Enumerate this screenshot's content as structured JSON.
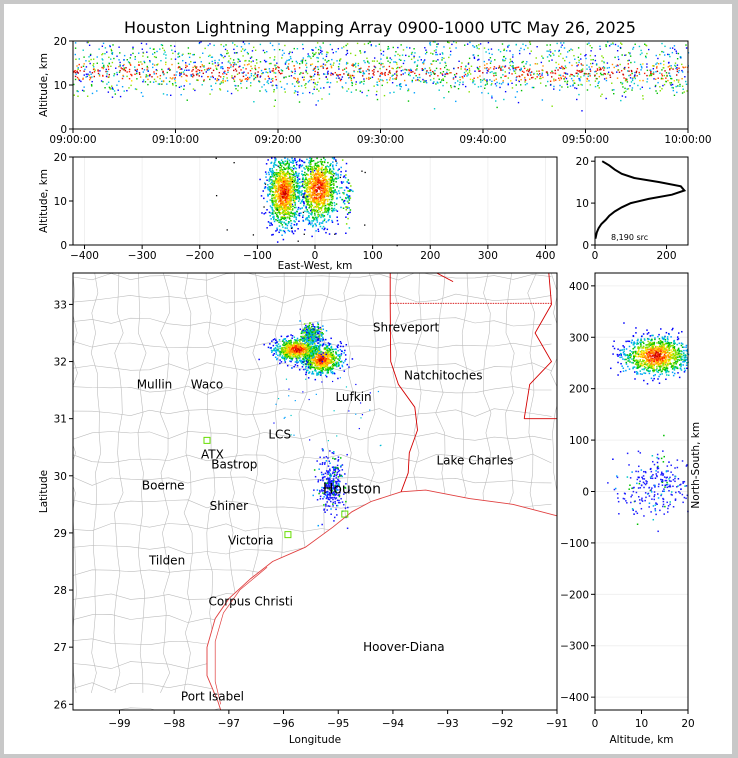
{
  "title": "Houston Lightning Mapping Array 0900-1000 UTC May 26, 2025",
  "colors": {
    "county": "#bdbdbd",
    "state": "#d40000",
    "coast": "#e04040",
    "city": "#000000",
    "network_station": "#ff8c2a",
    "houston": "#e8a000",
    "storm": "#1a1aff",
    "sensor": "#66dd00"
  },
  "chart_data": [
    {
      "id": "time_altitude",
      "type": "scatter",
      "xlabel": "",
      "ylabel": "Altitude, km",
      "x_ticks": [
        "09:00:00",
        "09:10:00",
        "09:20:00",
        "09:30:00",
        "09:40:00",
        "09:50:00",
        "10:00:00"
      ],
      "xlim": [
        "09:00:00",
        "10:00:00"
      ],
      "ylim": [
        0,
        20
      ],
      "y_ticks": [
        0,
        10,
        20
      ],
      "density_bands": [
        {
          "t_start": "09:00:00",
          "t_end": "10:00:00",
          "alt_center": 13,
          "alt_spread": 3
        }
      ]
    },
    {
      "id": "eastwest_altitude",
      "type": "scatter",
      "xlabel": "East-West, km",
      "ylabel": "Altitude, km",
      "xlim": [
        -420,
        420
      ],
      "x_ticks": [
        -400,
        -300,
        -200,
        -100,
        0,
        100,
        200,
        300,
        400
      ],
      "ylim": [
        0,
        20
      ],
      "y_ticks": [
        0,
        10,
        20
      ],
      "clusters": [
        {
          "x": 5,
          "y": 13,
          "sx": 18,
          "sy": 4,
          "core": true
        },
        {
          "x": -55,
          "y": 12,
          "sx": 14,
          "sy": 4,
          "core": true
        },
        {
          "x": 55,
          "y": 11,
          "sx": 4,
          "sy": 3,
          "core": false
        }
      ]
    },
    {
      "id": "altitude_histogram",
      "type": "line",
      "xlabel": "",
      "ylabel": "",
      "xlim": [
        0,
        260
      ],
      "x_ticks": [
        0,
        200
      ],
      "ylim": [
        0,
        21
      ],
      "y_ticks": [
        0,
        10,
        20
      ],
      "annotation": "8,190 src",
      "profile": [
        [
          1.5,
          1
        ],
        [
          3,
          5
        ],
        [
          4,
          10
        ],
        [
          5,
          18
        ],
        [
          6,
          30
        ],
        [
          7,
          40
        ],
        [
          8,
          55
        ],
        [
          9,
          75
        ],
        [
          10,
          100
        ],
        [
          11,
          150
        ],
        [
          12,
          215
        ],
        [
          13,
          250
        ],
        [
          14,
          240
        ],
        [
          15,
          180
        ],
        [
          16,
          110
        ],
        [
          17,
          75
        ],
        [
          18,
          55
        ],
        [
          19,
          40
        ],
        [
          20,
          20
        ]
      ]
    },
    {
      "id": "plan_view_map",
      "type": "scatter",
      "xlabel": "Longitude",
      "ylabel": "Latitude",
      "xlim": [
        -99.85,
        -91
      ],
      "ylim": [
        25.9,
        33.55
      ],
      "x_ticks": [
        -99,
        -98,
        -97,
        -96,
        -95,
        -94,
        -93,
        -92,
        -91
      ],
      "y_ticks": [
        26,
        27,
        28,
        29,
        30,
        31,
        32,
        33
      ],
      "cities": [
        {
          "name": "Shreveport",
          "lon": -93.76,
          "lat": 32.6
        },
        {
          "name": "Natchitoches",
          "lon": -93.08,
          "lat": 31.76
        },
        {
          "name": "Mullin",
          "lon": -98.36,
          "lat": 31.6
        },
        {
          "name": "Waco",
          "lon": -97.4,
          "lat": 31.6
        },
        {
          "name": "Lufkin",
          "lon": -94.72,
          "lat": 31.38
        },
        {
          "name": "LCS",
          "lon": -96.07,
          "lat": 30.72
        },
        {
          "name": "ATX",
          "lon": -97.3,
          "lat": 30.37
        },
        {
          "name": "Bastrop",
          "lon": -96.9,
          "lat": 30.2
        },
        {
          "name": "Lake Charles",
          "lon": -92.5,
          "lat": 30.27
        },
        {
          "name": "Boerne",
          "lon": -98.2,
          "lat": 29.83
        },
        {
          "name": "Houston",
          "lon": -94.75,
          "lat": 29.76
        },
        {
          "name": "Shiner",
          "lon": -97.0,
          "lat": 29.47
        },
        {
          "name": "Victoria",
          "lon": -96.6,
          "lat": 28.87
        },
        {
          "name": "Tilden",
          "lon": -98.13,
          "lat": 28.52
        },
        {
          "name": "Corpus Christi",
          "lon": -96.6,
          "lat": 27.8
        },
        {
          "name": "Hoover-Diana",
          "lon": -93.8,
          "lat": 27.0
        },
        {
          "name": "Port Isabel",
          "lon": -97.3,
          "lat": 26.14
        }
      ],
      "clusters": [
        {
          "lon": -95.32,
          "lat": 32.05,
          "slon": 0.18,
          "slat": 0.13,
          "core": true
        },
        {
          "lon": -95.78,
          "lat": 32.22,
          "slon": 0.2,
          "slat": 0.1,
          "core": true
        },
        {
          "lon": -95.5,
          "lat": 32.5,
          "slon": 0.09,
          "slat": 0.07,
          "core": false
        },
        {
          "lon": -95.15,
          "lat": 29.85,
          "slon": 0.12,
          "slat": 0.25,
          "core": false
        }
      ],
      "sensors": [
        {
          "lon": -97.4,
          "lat": 30.62
        },
        {
          "lon": -95.92,
          "lat": 28.97
        },
        {
          "lon": -94.88,
          "lat": 29.33
        }
      ]
    },
    {
      "id": "northsouth_altitude",
      "type": "scatter",
      "xlabel": "Altitude, km",
      "ylabel": "North-South, km",
      "xlim": [
        0,
        20
      ],
      "x_ticks": [
        0,
        10,
        20
      ],
      "ylim": [
        -425,
        425
      ],
      "y_ticks": [
        -400,
        -300,
        -200,
        -100,
        0,
        100,
        200,
        300,
        400
      ],
      "clusters": [
        {
          "x": 13,
          "y": 265,
          "sx": 3.5,
          "sy": 18,
          "core": true
        },
        {
          "x": 13,
          "y": 10,
          "sx": 4.5,
          "sy": 28,
          "core": false
        }
      ]
    }
  ]
}
